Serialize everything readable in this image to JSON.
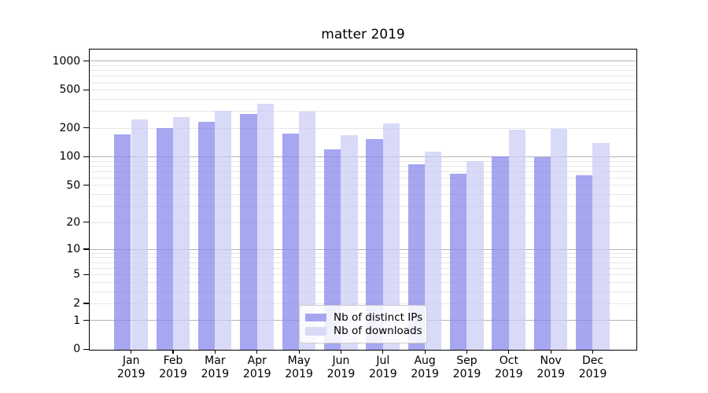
{
  "title": "matter 2019",
  "chart_data": {
    "type": "bar",
    "title": "matter 2019",
    "categories": [
      "Jan 2019",
      "Feb 2019",
      "Mar 2019",
      "Apr 2019",
      "May 2019",
      "Jun 2019",
      "Jul 2019",
      "Aug 2019",
      "Sep 2019",
      "Oct 2019",
      "Nov 2019",
      "Dec 2019"
    ],
    "x_tick_line1": [
      "Jan",
      "Feb",
      "Mar",
      "Apr",
      "May",
      "Jun",
      "Jul",
      "Aug",
      "Sep",
      "Oct",
      "Nov",
      "Dec"
    ],
    "x_tick_line2": "2019",
    "series": [
      {
        "name": "Nb of distinct IPs",
        "color": "#a6a6f0",
        "fill": "rgba(132,132,235,0.72)",
        "values": [
          173,
          199,
          233,
          281,
          176,
          121,
          153,
          84,
          67,
          101,
          99,
          64
        ]
      },
      {
        "name": "Nb of downloads",
        "color": "#dadaf8",
        "fill": "rgba(203,203,245,0.72)",
        "values": [
          246,
          261,
          305,
          357,
          300,
          168,
          223,
          114,
          90,
          192,
          197,
          139
        ]
      }
    ],
    "y_axis": {
      "scale": "log1p",
      "tick_values": [
        0,
        1,
        2,
        5,
        10,
        20,
        50,
        100,
        200,
        500,
        1000
      ],
      "major_grid": [
        1,
        10,
        100,
        1000
      ],
      "minor_grid": [
        2,
        3,
        4,
        5,
        6,
        7,
        8,
        9,
        20,
        30,
        40,
        50,
        60,
        70,
        80,
        90,
        200,
        300,
        400,
        500,
        600,
        700,
        800,
        900
      ],
      "ylim": [
        0,
        1350
      ]
    },
    "xlabel": "",
    "ylabel": "",
    "grid": true,
    "legend_position": "lower center inside plot"
  },
  "colors": {
    "background": "#ffffff",
    "spine": "#000000",
    "major_grid": "#b4b4b4",
    "minor_grid": "#e7e7e7",
    "text": "#000000",
    "legend_border": "#cccccc"
  }
}
